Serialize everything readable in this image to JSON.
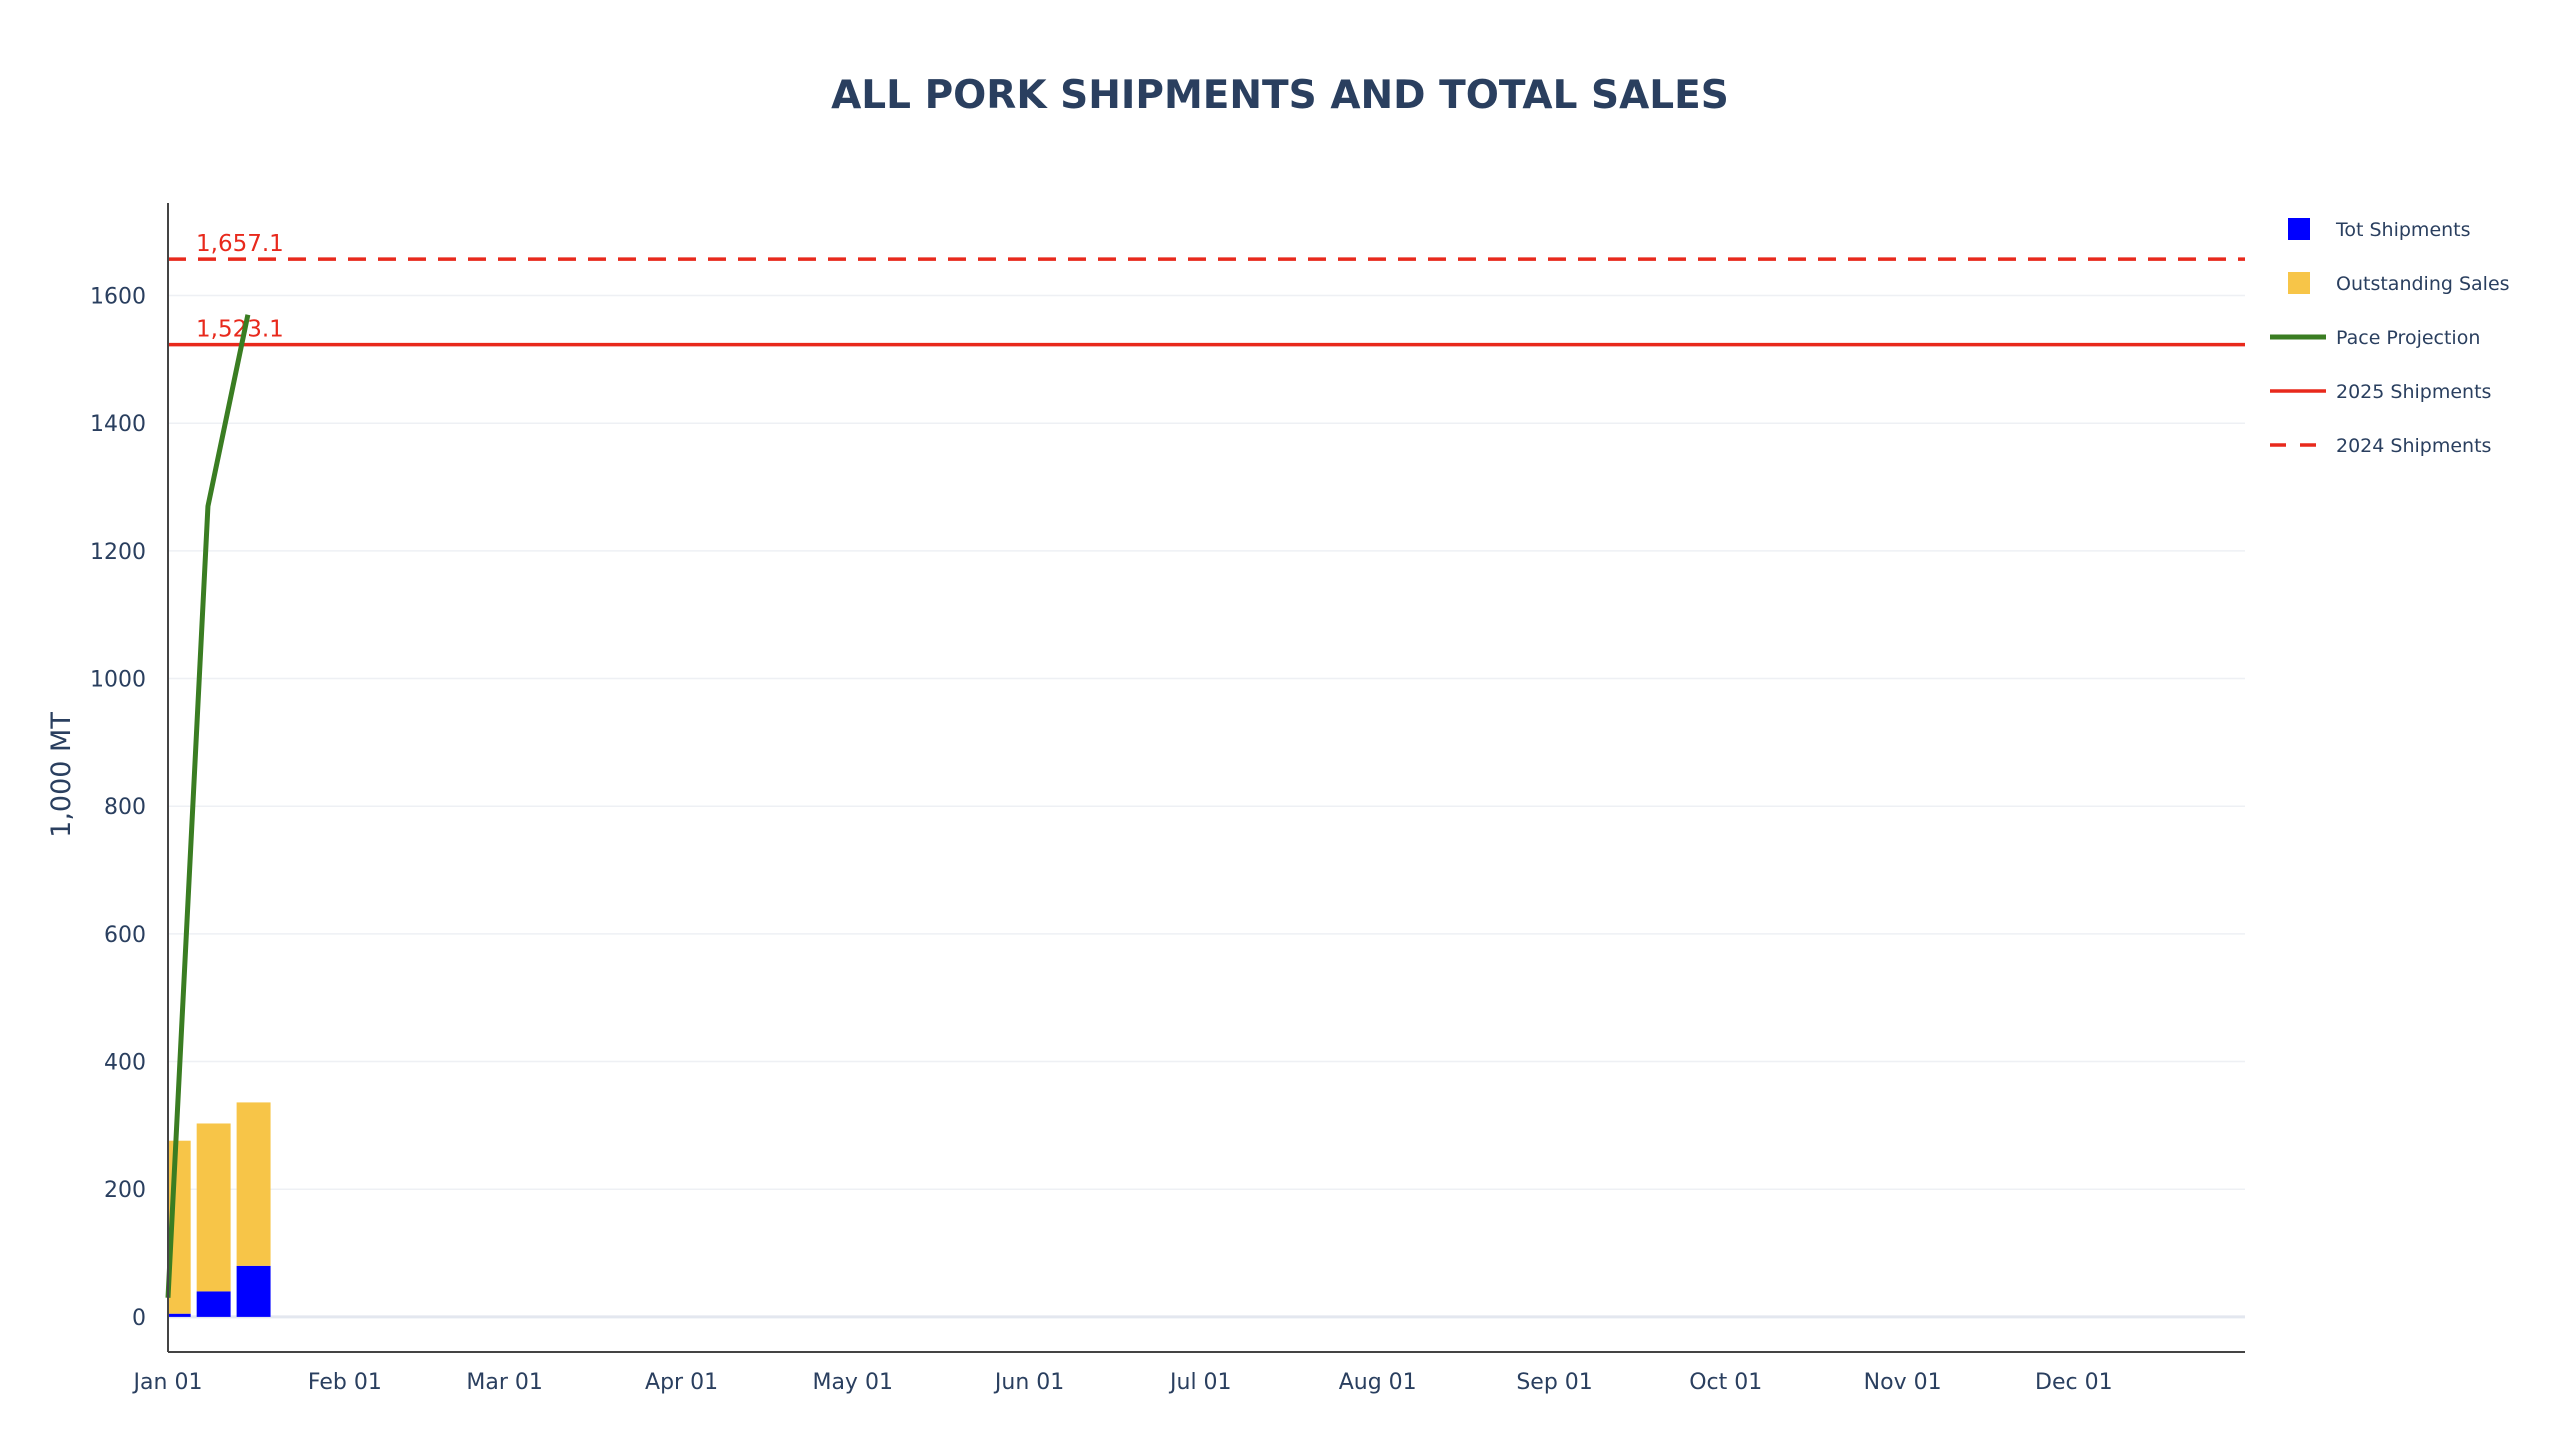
{
  "chart_data": {
    "type": "bar",
    "title": "ALL PORK SHIPMENTS AND TOTAL SALES",
    "xlabel": "",
    "ylabel": "1,000 MT",
    "x_axis": {
      "type": "date",
      "range": [
        "2025-01-01",
        "2025-12-31"
      ],
      "tick_labels": [
        "Jan 01",
        "Feb 01",
        "Mar 01",
        "Apr 01",
        "May 01",
        "Jun 01",
        "Jul 01",
        "Aug 01",
        "Sep 01",
        "Oct 01",
        "Nov 01",
        "Dec 01"
      ],
      "tick_dates": [
        "2025-01-01",
        "2025-02-01",
        "2025-03-01",
        "2025-04-01",
        "2025-05-01",
        "2025-06-01",
        "2025-07-01",
        "2025-08-01",
        "2025-09-01",
        "2025-10-01",
        "2025-11-01",
        "2025-12-01"
      ]
    },
    "y_axis": {
      "range": [
        -55,
        1745
      ],
      "tick_values": [
        0,
        200,
        400,
        600,
        800,
        1000,
        1200,
        1400,
        1600
      ],
      "tick_labels": [
        "0",
        "200",
        "400",
        "600",
        "800",
        "1000",
        "1200",
        "1400",
        "1600"
      ],
      "grid": true
    },
    "bars_stacked": true,
    "x": [
      "2025-01-02",
      "2025-01-09",
      "2025-01-16"
    ],
    "series": [
      {
        "name": "Tot Shipments",
        "kind": "bar",
        "color": "#0000ff",
        "values": [
          5,
          40,
          80
        ]
      },
      {
        "name": "Outstanding Sales",
        "kind": "bar",
        "color": "#f7c548",
        "values": [
          271,
          263,
          256
        ]
      },
      {
        "name": "Pace Projection",
        "kind": "line",
        "color": "#3a7d22",
        "dash": "solid",
        "x": [
          "2025-01-01",
          "2025-01-08",
          "2025-01-15"
        ],
        "values": [
          30,
          1270,
          1570
        ]
      },
      {
        "name": "2025 Shipments",
        "kind": "hline",
        "color": "#e8291c",
        "dash": "solid",
        "value": 1523.1,
        "label": "1,523.1"
      },
      {
        "name": "2024 Shipments",
        "kind": "hline",
        "color": "#e8291c",
        "dash": "dash",
        "value": 1657.1,
        "label": "1,657.1"
      }
    ],
    "legend": {
      "position": "top-right",
      "entries": [
        "Tot Shipments",
        "Outstanding Sales",
        "Pace Projection",
        "2025 Shipments",
        "2024 Shipments"
      ]
    }
  }
}
